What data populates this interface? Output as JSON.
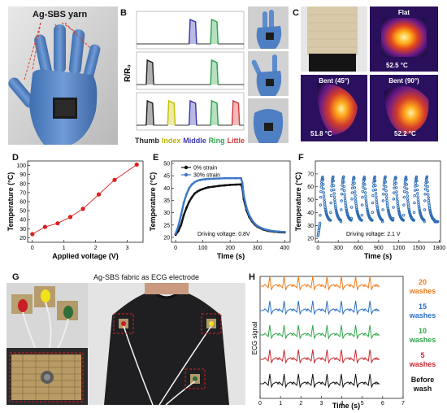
{
  "panels": {
    "A": {
      "label": "A",
      "yarn_label": "Ag-SBS yarn"
    },
    "B": {
      "label": "B",
      "ylabel": "R/R₀",
      "fingers": [
        {
          "name": "Thumb",
          "color": "#222222"
        },
        {
          "name": "Index",
          "color": "#c9c200"
        },
        {
          "name": "Middle",
          "color": "#3a36b0"
        },
        {
          "name": "Ring",
          "color": "#2ea64a"
        },
        {
          "name": "Little",
          "color": "#d43a3a"
        }
      ],
      "rows": [
        {
          "active": [
            false,
            false,
            true,
            true,
            false
          ]
        },
        {
          "active": [
            true,
            false,
            false,
            true,
            false
          ]
        },
        {
          "active": [
            true,
            true,
            true,
            true,
            true
          ]
        }
      ]
    },
    "C": {
      "label": "C",
      "thermal": [
        {
          "title": "Flat",
          "temp": "52.5 °C"
        },
        {
          "title": "Bent (45°)",
          "temp": "51.8 °C"
        },
        {
          "title": "Bent (90°)",
          "temp": "52.2 °C"
        }
      ]
    },
    "G": {
      "label": "G",
      "title": "Ag-SBS fabric as ECG electrode"
    },
    "H": {
      "label": "H",
      "ylabel": "ECG signal",
      "xlabel": "Time (s)",
      "ticks": [
        "0",
        "1",
        "2",
        "3",
        "4",
        "5",
        "6",
        "7"
      ],
      "traces": [
        {
          "line1": "20",
          "line2": "washes",
          "color": "#f07a1a"
        },
        {
          "line1": "15",
          "line2": "washes",
          "color": "#2a6fc4"
        },
        {
          "line1": "10",
          "line2": "washes",
          "color": "#2ea64a"
        },
        {
          "line1": "5",
          "line2": "washes",
          "color": "#c8282e"
        },
        {
          "line1": "Before",
          "line2": "wash",
          "color": "#111111"
        }
      ]
    }
  },
  "chart_data": [
    {
      "id": "D",
      "type": "line",
      "xlabel": "Applied voltage (V)",
      "ylabel": "Temperature (°C)",
      "xlim": [
        -0.15,
        3.5
      ],
      "ylim": [
        15,
        105
      ],
      "xticks": [
        "0",
        "1",
        "2",
        "3"
      ],
      "yticks": [
        "20",
        "30",
        "40",
        "50",
        "60",
        "70",
        "80",
        "90",
        "100"
      ],
      "series": [
        {
          "x": [
            0,
            0.4,
            0.8,
            1.2,
            1.6,
            2.1,
            2.6,
            3.3
          ],
          "y": [
            24,
            32,
            36,
            43,
            52,
            68,
            84,
            101
          ],
          "color": "#d62020"
        }
      ]
    },
    {
      "id": "E",
      "type": "line",
      "xlabel": "Time (s)",
      "ylabel": "Temperature (°C)",
      "annotation": "Driving voltage: 0.8V",
      "xlim": [
        -15,
        420
      ],
      "ylim": [
        18,
        51
      ],
      "xticks": [
        "0",
        "100",
        "200",
        "300",
        "400"
      ],
      "yticks": [
        "20",
        "25",
        "30",
        "35",
        "40",
        "45",
        "50"
      ],
      "series": [
        {
          "name": "0% strain",
          "color": "#111111",
          "x": [
            0,
            10,
            20,
            30,
            40,
            50,
            60,
            70,
            80,
            90,
            100,
            110,
            120,
            140,
            160,
            180,
            200,
            220,
            240,
            245,
            250,
            260,
            270,
            280,
            290,
            300,
            320,
            340,
            360,
            380,
            400
          ],
          "y": [
            21,
            22.5,
            25,
            29,
            32,
            34.5,
            36.3,
            37.8,
            38.6,
            39.2,
            39.6,
            40,
            40.3,
            40.6,
            40.9,
            41.1,
            41.3,
            41.4,
            41.5,
            40,
            35.5,
            31,
            28.3,
            26.5,
            25.2,
            24.3,
            23.2,
            22.6,
            22.3,
            22.1,
            22
          ]
        },
        {
          "name": "30% strain",
          "color": "#3e78c8",
          "x": [
            0,
            10,
            20,
            30,
            40,
            50,
            60,
            70,
            80,
            90,
            100,
            110,
            120,
            140,
            160,
            180,
            200,
            220,
            240,
            245,
            250,
            260,
            270,
            280,
            290,
            300,
            320,
            340,
            360,
            380,
            400
          ],
          "y": [
            21.5,
            24.5,
            29,
            34,
            37.5,
            40,
            41.5,
            42.4,
            43,
            43.3,
            43.5,
            43.6,
            43.7,
            43.8,
            43.9,
            44,
            44,
            44,
            44,
            42,
            37,
            32,
            29,
            27,
            25.6,
            24.6,
            23.5,
            22.9,
            22.5,
            22.3,
            22.2
          ]
        }
      ]
    },
    {
      "id": "F",
      "type": "scatter",
      "xlabel": "Time (s)",
      "ylabel": "Temperature (°C)",
      "annotation": "Driving voltage: 2.1 V",
      "xlim": [
        -40,
        1820
      ],
      "ylim": [
        17,
        80
      ],
      "xticks": [
        "0",
        "300",
        "600",
        "900",
        "1200",
        "1500",
        "1800"
      ],
      "yticks": [
        "20",
        "30",
        "40",
        "50",
        "60",
        "70"
      ],
      "cycles": 11,
      "period_s": 155,
      "t_start": 30,
      "peak_C": 70,
      "base_C": 33,
      "color": "#2f6db5"
    }
  ]
}
